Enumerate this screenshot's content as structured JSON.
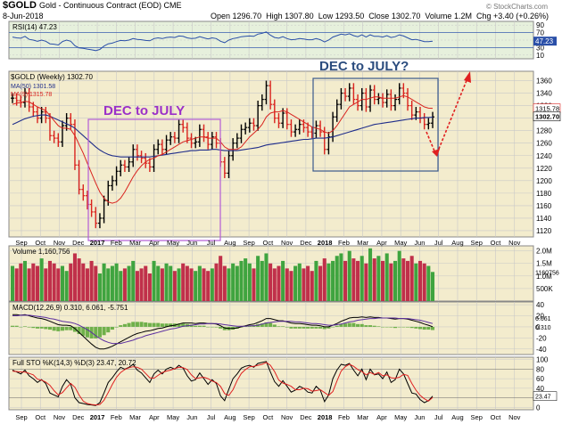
{
  "header": {
    "symbol": "$GOLD",
    "description": "Gold - Continuous Contract (EOD) CME",
    "date": "8-Jun-2018",
    "open_label": "Open",
    "open": "1296.70",
    "high_label": "High",
    "high": "1307.80",
    "low_label": "Low",
    "low": "1293.50",
    "close_label": "Close",
    "close": "1302.70",
    "volume_label": "Volume",
    "volume": "1.2M",
    "chg_label": "Chg",
    "chg": "+3.40 (+0.26%)",
    "watermark": "© StockCharts.com"
  },
  "annotations": {
    "box1_label": "DEC to JULY",
    "box2_label": "DEC to JULY?"
  },
  "colors": {
    "panel_bg": "#f3eccd",
    "rsi_bg": "#e6f0dc",
    "grid": "#c8c8c8",
    "ma50": "#1f2d8a",
    "ma9": "#d9231e",
    "price_bar": "#000000",
    "box1": "#b45cd6",
    "box2": "#3a5a8c",
    "label1": "#9b30c8",
    "label2": "#2b4c7e",
    "arrow": "#e02020",
    "vol_up": "#3fa43f",
    "vol_down": "#c0304a",
    "rsi_line": "#2a4fa8",
    "macd_line": "#000000",
    "macd_signal": "#5b2ea0",
    "sto_k": "#000000",
    "sto_d": "#e02020"
  },
  "chart_data": {
    "type": "line",
    "x_labels": [
      "Sep",
      "Oct",
      "Nov",
      "Dec",
      "2017",
      "Feb",
      "Mar",
      "Apr",
      "May",
      "Jun",
      "Jul",
      "Aug",
      "Sep",
      "Oct",
      "Nov",
      "Dec",
      "2018",
      "Feb",
      "Mar",
      "Apr",
      "May",
      "Jun",
      "Jul",
      "Aug",
      "Sep",
      "Oct",
      "Nov"
    ],
    "price_panel": {
      "label": "$GOLD (Weekly) 1302.70",
      "ma50_label": "MA(50) 1301.58",
      "ma9_label": "MA(9) 1315.78",
      "yticks": [
        1120,
        1140,
        1160,
        1180,
        1200,
        1220,
        1240,
        1260,
        1280,
        1300,
        1320,
        1340,
        1360
      ],
      "ylim": [
        1110,
        1375
      ],
      "last_close_tag": "1302.70",
      "ma9_tag": "1315.78",
      "close": [
        1332,
        1328,
        1325,
        1340,
        1318,
        1310,
        1300,
        1310,
        1300,
        1272,
        1268,
        1262,
        1288,
        1300,
        1290,
        1225,
        1186,
        1176,
        1162,
        1150,
        1132,
        1140,
        1168,
        1192,
        1200,
        1215,
        1225,
        1222,
        1230,
        1250,
        1240,
        1236,
        1228,
        1222,
        1250,
        1258,
        1250,
        1265,
        1270,
        1268,
        1290,
        1285,
        1268,
        1260,
        1262,
        1282,
        1270,
        1258,
        1270,
        1260,
        1230,
        1212,
        1240,
        1260,
        1268,
        1282,
        1285,
        1292,
        1288,
        1320,
        1330,
        1352,
        1322,
        1300,
        1292,
        1308,
        1290,
        1278,
        1282,
        1290,
        1285,
        1278,
        1276,
        1288,
        1278,
        1250,
        1270,
        1302,
        1322,
        1340,
        1335,
        1348,
        1330,
        1320,
        1340,
        1318,
        1345,
        1330,
        1332,
        1325,
        1338,
        1320,
        1330,
        1348,
        1340,
        1320,
        1305,
        1310,
        1300,
        1290,
        1292,
        1302
      ],
      "ma50": [
        1290,
        1293,
        1296,
        1299,
        1301,
        1303,
        1304,
        1305,
        1305,
        1303,
        1300,
        1297,
        1294,
        1291,
        1288,
        1284,
        1278,
        1272,
        1266,
        1260,
        1254,
        1249,
        1245,
        1242,
        1240,
        1239,
        1238,
        1238,
        1238,
        1238,
        1238,
        1238,
        1238,
        1238,
        1239,
        1240,
        1241,
        1242,
        1243,
        1244,
        1245,
        1246,
        1247,
        1248,
        1248,
        1249,
        1249,
        1249,
        1250,
        1250,
        1249,
        1248,
        1248,
        1248,
        1248,
        1249,
        1250,
        1251,
        1252,
        1253,
        1255,
        1257,
        1258,
        1259,
        1260,
        1261,
        1262,
        1263,
        1264,
        1265,
        1266,
        1266,
        1267,
        1268,
        1268,
        1268,
        1269,
        1270,
        1272,
        1274,
        1276,
        1278,
        1280,
        1282,
        1284,
        1286,
        1288,
        1290,
        1291,
        1292,
        1293,
        1294,
        1295,
        1296,
        1297,
        1298,
        1299,
        1300,
        1300,
        1301,
        1301,
        1301.58
      ],
      "ma9": [
        1322,
        1324,
        1325,
        1327,
        1326,
        1322,
        1318,
        1315,
        1312,
        1304,
        1296,
        1288,
        1284,
        1284,
        1282,
        1272,
        1258,
        1244,
        1228,
        1212,
        1196,
        1182,
        1172,
        1166,
        1164,
        1166,
        1172,
        1182,
        1194,
        1206,
        1216,
        1224,
        1230,
        1234,
        1236,
        1240,
        1242,
        1246,
        1250,
        1254,
        1258,
        1262,
        1264,
        1266,
        1268,
        1270,
        1270,
        1268,
        1268,
        1268,
        1262,
        1254,
        1250,
        1250,
        1250,
        1254,
        1262,
        1270,
        1276,
        1282,
        1290,
        1302,
        1308,
        1310,
        1310,
        1312,
        1310,
        1306,
        1302,
        1298,
        1294,
        1290,
        1286,
        1284,
        1282,
        1278,
        1276,
        1280,
        1288,
        1298,
        1308,
        1318,
        1322,
        1326,
        1330,
        1330,
        1332,
        1334,
        1334,
        1332,
        1332,
        1332,
        1332,
        1334,
        1336,
        1334,
        1330,
        1326,
        1322,
        1318,
        1316,
        1315.78
      ]
    },
    "rsi_panel": {
      "label": "RSI(14) 47.23",
      "yticks": [
        10,
        30,
        50,
        70,
        90
      ],
      "ylim": [
        0,
        100
      ],
      "last_tag": "47.23",
      "values": [
        58,
        56,
        55,
        60,
        52,
        50,
        47,
        50,
        47,
        40,
        39,
        37,
        46,
        50,
        47,
        35,
        29,
        28,
        26,
        24,
        22,
        25,
        34,
        40,
        42,
        46,
        49,
        48,
        50,
        54,
        52,
        51,
        49,
        48,
        54,
        56,
        54,
        57,
        58,
        57,
        61,
        60,
        56,
        54,
        55,
        59,
        56,
        53,
        56,
        54,
        47,
        43,
        50,
        54,
        56,
        59,
        60,
        61,
        60,
        66,
        68,
        72,
        63,
        57,
        55,
        59,
        54,
        51,
        52,
        54,
        53,
        51,
        51,
        54,
        51,
        45,
        50,
        58,
        62,
        66,
        64,
        67,
        62,
        59,
        64,
        58,
        64,
        60,
        60,
        58,
        62,
        57,
        59,
        64,
        61,
        56,
        51,
        52,
        49,
        46,
        46,
        47.23
      ]
    },
    "volume_panel": {
      "label": "Volume 1,160,756",
      "yticks": [
        "500K",
        "1.0M",
        "1.5M",
        "2.0M"
      ],
      "ylim": [
        0,
        2.2
      ],
      "last_tag": "1160756",
      "values": [
        1.4,
        1.3,
        1.5,
        1.6,
        1.3,
        1.5,
        1.4,
        1.7,
        1.3,
        1.6,
        1.5,
        1.3,
        1.4,
        1.2,
        1.5,
        1.9,
        1.7,
        1.5,
        1.3,
        1.6,
        1.4,
        1.1,
        1.5,
        1.3,
        1.4,
        1.5,
        1.2,
        1.3,
        1.4,
        1.6,
        1.2,
        1.3,
        1.4,
        1.1,
        1.6,
        1.4,
        1.3,
        1.5,
        1.4,
        1.2,
        1.3,
        1.5,
        1.4,
        1.3,
        1.2,
        1.4,
        1.3,
        1.2,
        1.3,
        1.5,
        1.8,
        1.4,
        1.3,
        1.5,
        1.4,
        1.6,
        1.7,
        1.5,
        1.3,
        1.8,
        1.6,
        1.9,
        1.5,
        1.3,
        1.4,
        1.6,
        1.3,
        1.2,
        1.4,
        1.5,
        1.3,
        1.4,
        1.2,
        1.6,
        1.4,
        1.7,
        1.5,
        1.6,
        1.8,
        1.9,
        1.6,
        2.0,
        1.7,
        1.6,
        1.8,
        1.5,
        2.1,
        1.7,
        1.8,
        1.6,
        1.9,
        1.5,
        1.6,
        2.0,
        1.7,
        1.6,
        1.8,
        1.5,
        1.6,
        1.5,
        1.4,
        1.16
      ]
    },
    "macd_panel": {
      "label": "MACD(12,26,9) 0.310, 6.061, -5.751",
      "yticks": [
        -40,
        -20,
        0,
        20,
        40
      ],
      "ylim": [
        -50,
        45
      ],
      "macd_tag": "0.310",
      "signal_tag": "6.061",
      "macd": [
        22,
        22,
        21,
        22,
        20,
        18,
        16,
        15,
        13,
        10,
        7,
        4,
        3,
        3,
        2,
        -3,
        -10,
        -17,
        -24,
        -31,
        -37,
        -40,
        -40,
        -38,
        -35,
        -31,
        -27,
        -23,
        -19,
        -15,
        -12,
        -10,
        -8,
        -7,
        -5,
        -3,
        -2,
        0,
        2,
        3,
        5,
        7,
        7,
        7,
        6,
        7,
        7,
        6,
        6,
        5,
        2,
        -2,
        -3,
        -3,
        -2,
        0,
        2,
        4,
        5,
        8,
        11,
        15,
        15,
        13,
        11,
        11,
        9,
        7,
        6,
        6,
        5,
        4,
        3,
        3,
        2,
        0,
        0,
        3,
        6,
        10,
        13,
        16,
        17,
        17,
        18,
        17,
        18,
        17,
        17,
        16,
        16,
        15,
        14,
        15,
        15,
        14,
        12,
        10,
        8,
        5,
        3,
        0.31
      ],
      "signal": [
        20,
        20,
        21,
        21,
        21,
        20,
        19,
        18,
        17,
        15,
        14,
        12,
        10,
        9,
        8,
        6,
        3,
        -1,
        -5,
        -10,
        -16,
        -21,
        -25,
        -28,
        -30,
        -30,
        -30,
        -28,
        -26,
        -24,
        -21,
        -19,
        -16,
        -14,
        -12,
        -10,
        -8,
        -6,
        -4,
        -3,
        -1,
        1,
        2,
        3,
        4,
        5,
        5,
        6,
        6,
        6,
        5,
        4,
        3,
        2,
        1,
        1,
        1,
        2,
        2,
        3,
        5,
        7,
        8,
        9,
        10,
        10,
        10,
        10,
        9,
        9,
        8,
        7,
        6,
        6,
        5,
        4,
        3,
        3,
        4,
        5,
        7,
        9,
        10,
        12,
        13,
        14,
        15,
        15,
        16,
        16,
        16,
        16,
        16,
        15,
        15,
        15,
        14,
        13,
        12,
        10,
        8,
        6.061
      ]
    },
    "sto_panel": {
      "label": "Full STO %K(14,3) %D(3) 23.47, 20.72",
      "yticks": [
        0,
        20,
        40,
        60,
        80,
        100
      ],
      "ylim": [
        -5,
        105
      ],
      "last_tag": "23.47",
      "k": [
        78,
        74,
        70,
        78,
        66,
        60,
        52,
        58,
        50,
        30,
        26,
        22,
        44,
        58,
        48,
        20,
        10,
        8,
        6,
        5,
        4,
        10,
        30,
        52,
        62,
        74,
        84,
        80,
        84,
        90,
        78,
        72,
        62,
        52,
        70,
        78,
        70,
        80,
        84,
        80,
        88,
        82,
        66,
        55,
        58,
        72,
        60,
        48,
        58,
        50,
        24,
        14,
        38,
        60,
        70,
        82,
        86,
        88,
        84,
        92,
        94,
        96,
        74,
        54,
        44,
        56,
        44,
        32,
        36,
        44,
        40,
        32,
        30,
        44,
        36,
        12,
        26,
        60,
        78,
        90,
        88,
        92,
        78,
        66,
        80,
        58,
        80,
        68,
        70,
        60,
        74,
        52,
        58,
        80,
        70,
        50,
        30,
        28,
        16,
        10,
        14,
        23.47
      ],
      "d": [
        76,
        75,
        74,
        74,
        71,
        68,
        59,
        57,
        53,
        46,
        35,
        26,
        31,
        41,
        50,
        42,
        26,
        13,
        8,
        6,
        5,
        6,
        15,
        31,
        48,
        63,
        73,
        79,
        83,
        85,
        84,
        80,
        71,
        62,
        61,
        67,
        73,
        76,
        78,
        81,
        84,
        83,
        79,
        68,
        60,
        62,
        63,
        60,
        55,
        52,
        44,
        29,
        25,
        37,
        56,
        71,
        79,
        85,
        86,
        88,
        90,
        94,
        88,
        75,
        57,
        51,
        48,
        44,
        37,
        37,
        40,
        39,
        34,
        35,
        37,
        31,
        25,
        33,
        55,
        76,
        85,
        90,
        86,
        79,
        75,
        68,
        73,
        69,
        73,
        66,
        68,
        62,
        61,
        63,
        69,
        67,
        50,
        36,
        25,
        18,
        13,
        20.72
      ]
    }
  }
}
